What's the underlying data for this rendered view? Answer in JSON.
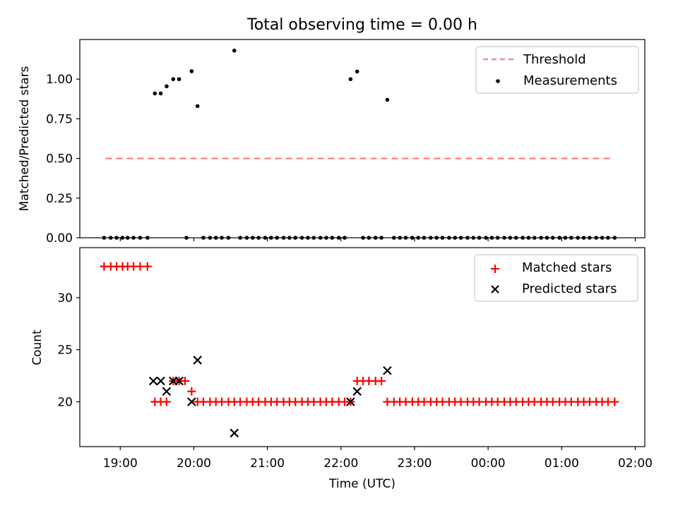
{
  "figure_title": "Total observing time = 0.00 h",
  "colors": {
    "threshold": "#ff7f7f",
    "measurements": "#000000",
    "matched": "#ff0000",
    "predicted": "#000000",
    "axes": "#000000"
  },
  "chart_data": [
    {
      "type": "scatter",
      "title": "Total observing time = 0.00 h",
      "xlabel": "",
      "ylabel": "Matched/Predicted stars",
      "xlim": [
        18.45,
        26.13
      ],
      "ylim": [
        0,
        1.25
      ],
      "x_ticks": [
        19,
        20,
        21,
        22,
        23,
        24,
        25,
        26
      ],
      "x_tick_labels_visible": false,
      "y_ticks": [
        0.0,
        0.25,
        0.5,
        0.75,
        1.0
      ],
      "y_tick_labels": [
        "0.00",
        "0.25",
        "0.50",
        "0.75",
        "1.00"
      ],
      "legend": {
        "position": "top-right",
        "entries": [
          {
            "label": "Threshold",
            "marker": "dashed-line"
          },
          {
            "label": "Measurements",
            "marker": "dot"
          }
        ]
      },
      "threshold": {
        "name": "Threshold",
        "x": [
          18.8,
          25.68
        ],
        "y": 0.5
      },
      "series": [
        {
          "name": "Measurements",
          "marker": "dot",
          "x": [
            18.78,
            18.87,
            18.95,
            19.03,
            19.1,
            19.18,
            19.27,
            19.37,
            19.47,
            19.55,
            19.63,
            19.72,
            19.8,
            19.9,
            19.97,
            20.05,
            20.13,
            20.22,
            20.3,
            20.38,
            20.47,
            20.55,
            20.63,
            20.72,
            20.8,
            20.88,
            20.97,
            21.05,
            21.13,
            21.22,
            21.3,
            21.38,
            21.47,
            21.55,
            21.63,
            21.72,
            21.8,
            21.88,
            21.97,
            22.05,
            22.13,
            22.22,
            22.3,
            22.38,
            22.47,
            22.55,
            22.63,
            22.72,
            22.8,
            22.88,
            22.97,
            23.05,
            23.13,
            23.22,
            23.3,
            23.38,
            23.47,
            23.55,
            23.63,
            23.72,
            23.8,
            23.88,
            23.97,
            24.05,
            24.13,
            24.22,
            24.3,
            24.38,
            24.47,
            24.55,
            24.63,
            24.72,
            24.8,
            24.88,
            24.97,
            25.05,
            25.13,
            25.22,
            25.3,
            25.38,
            25.47,
            25.55,
            25.63,
            25.72
          ],
          "y": [
            0,
            0,
            0,
            0,
            0,
            0,
            0,
            0,
            0.91,
            0.91,
            0.955,
            1.0,
            1.0,
            0,
            1.05,
            0.83,
            0,
            0,
            0,
            0,
            0,
            1.18,
            0,
            0,
            0,
            0,
            0,
            0,
            0,
            0,
            0,
            0,
            0,
            0,
            0,
            0,
            0,
            0,
            0,
            0,
            1.0,
            1.048,
            0,
            0,
            0,
            0,
            0.87,
            0,
            0,
            0,
            0,
            0,
            0,
            0,
            0,
            0,
            0,
            0,
            0,
            0,
            0,
            0,
            0,
            0,
            0,
            0,
            0,
            0,
            0,
            0,
            0,
            0,
            0,
            0,
            0,
            0,
            0,
            0,
            0,
            0,
            0,
            0,
            0,
            0
          ]
        }
      ]
    },
    {
      "type": "scatter",
      "title": "",
      "xlabel": "Time (UTC)",
      "ylabel": "Count",
      "xlim": [
        18.45,
        26.13
      ],
      "ylim": [
        15.7,
        34.8
      ],
      "x_ticks": [
        19,
        20,
        21,
        22,
        23,
        24,
        25,
        26
      ],
      "x_tick_labels": [
        "19:00",
        "20:00",
        "21:00",
        "22:00",
        "23:00",
        "00:00",
        "01:00",
        "02:00"
      ],
      "y_ticks": [
        20,
        25,
        30
      ],
      "y_tick_labels": [
        "20",
        "25",
        "30"
      ],
      "legend": {
        "position": "top-right",
        "entries": [
          {
            "label": "Matched stars",
            "marker": "plus"
          },
          {
            "label": "Predicted stars",
            "marker": "x"
          }
        ]
      },
      "series": [
        {
          "name": "Matched stars",
          "marker": "plus",
          "x": [
            18.78,
            18.87,
            18.95,
            19.03,
            19.1,
            19.18,
            19.27,
            19.37,
            19.47,
            19.55,
            19.63,
            19.72,
            19.8,
            19.88,
            19.97,
            20.05,
            20.13,
            20.22,
            20.3,
            20.38,
            20.47,
            20.55,
            20.63,
            20.72,
            20.8,
            20.88,
            20.97,
            21.05,
            21.13,
            21.22,
            21.3,
            21.38,
            21.47,
            21.55,
            21.63,
            21.72,
            21.8,
            21.88,
            21.97,
            22.05,
            22.13,
            22.22,
            22.3,
            22.38,
            22.47,
            22.55,
            22.63,
            22.72,
            22.8,
            22.88,
            22.97,
            23.05,
            23.13,
            23.22,
            23.3,
            23.38,
            23.47,
            23.55,
            23.63,
            23.72,
            23.8,
            23.88,
            23.97,
            24.05,
            24.13,
            24.22,
            24.3,
            24.38,
            24.47,
            24.55,
            24.63,
            24.72,
            24.8,
            24.88,
            24.97,
            25.05,
            25.13,
            25.22,
            25.3,
            25.38,
            25.47,
            25.55,
            25.63,
            25.72
          ],
          "y": [
            33,
            33,
            33,
            33,
            33,
            33,
            33,
            33,
            20,
            20,
            20,
            22,
            22,
            22,
            21,
            20,
            20,
            20,
            20,
            20,
            20,
            20,
            20,
            20,
            20,
            20,
            20,
            20,
            20,
            20,
            20,
            20,
            20,
            20,
            20,
            20,
            20,
            20,
            20,
            20,
            20,
            22,
            22,
            22,
            22,
            22,
            20,
            20,
            20,
            20,
            20,
            20,
            20,
            20,
            20,
            20,
            20,
            20,
            20,
            20,
            20,
            20,
            20,
            20,
            20,
            20,
            20,
            20,
            20,
            20,
            20,
            20,
            20,
            20,
            20,
            20,
            20,
            20,
            20,
            20,
            20,
            20,
            20,
            20
          ]
        },
        {
          "name": "Predicted stars",
          "marker": "x",
          "x": [
            19.45,
            19.55,
            19.63,
            19.72,
            19.8,
            19.97,
            20.05,
            20.55,
            22.13,
            22.22,
            22.63
          ],
          "y": [
            22,
            22,
            21,
            22,
            22,
            20,
            24,
            17,
            20,
            21,
            23
          ]
        }
      ]
    }
  ]
}
